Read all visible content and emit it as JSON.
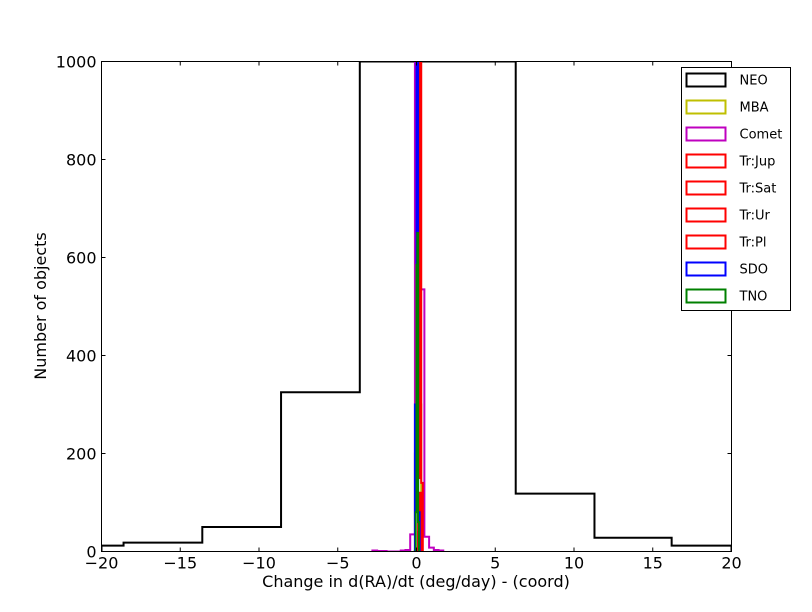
{
  "chart_data": {
    "type": "histogram",
    "xlabel": "Change in d(RA)/dt (deg/day) - (coord)",
    "ylabel": "Number of objects",
    "xlim": [
      -20,
      20
    ],
    "ylim": [
      0,
      1000
    ],
    "xticks": [
      -20,
      -15,
      -10,
      -5,
      0,
      5,
      10,
      15,
      20
    ],
    "xtick_labels": [
      "−20",
      "−15",
      "−10",
      "−5",
      "0",
      "5",
      "10",
      "15",
      "20"
    ],
    "yticks": [
      0,
      200,
      400,
      600,
      800,
      1000
    ],
    "ytick_labels": [
      "0",
      "200",
      "400",
      "600",
      "800",
      "1000"
    ],
    "grid": false,
    "legend_position": "upper-right",
    "series": [
      {
        "name": "NEO",
        "color": "#000000",
        "edges": [
          -20,
          -18.6,
          -13.6,
          -8.6,
          -3.6,
          1.4,
          6.3,
          11.3,
          16.2,
          20
        ],
        "counts": [
          12,
          18,
          50,
          325,
          1000,
          1000,
          118,
          28,
          12
        ]
      },
      {
        "name": "MBA",
        "color": "#bfbf00",
        "edges": [
          -0.2,
          -0.1,
          0.0,
          0.1,
          0.2,
          0.3,
          0.4
        ],
        "counts": [
          0,
          200,
          1000,
          1000,
          300,
          0
        ]
      },
      {
        "name": "Comet",
        "color": "#bf00bf",
        "edges": [
          -2.8,
          -2.5,
          -2.2,
          -1.9,
          -1.6,
          -1.3,
          -1.0,
          -0.7,
          -0.4,
          -0.1,
          0.2,
          0.5,
          0.8,
          1.1,
          1.4,
          1.7
        ],
        "counts": [
          2,
          1,
          1,
          0,
          0,
          0,
          2,
          3,
          35,
          1000,
          535,
          30,
          8,
          3,
          2
        ]
      },
      {
        "name": "Tr:Jup",
        "color": "#ff0000",
        "edges": [
          0.1,
          0.2,
          0.3,
          0.4
        ],
        "counts": [
          150,
          1000,
          140
        ]
      },
      {
        "name": "Tr:Sat",
        "color": "#ff0000",
        "edges": [
          0.2,
          0.3
        ],
        "counts": [
          5
        ]
      },
      {
        "name": "Tr:Ur",
        "color": "#ff0000",
        "edges": [
          0.2,
          0.3
        ],
        "counts": [
          3
        ]
      },
      {
        "name": "Tr:Pl",
        "color": "#ff0000",
        "edges": [
          0.1,
          0.2,
          0.3
        ],
        "counts": [
          40,
          120
        ]
      },
      {
        "name": "SDO",
        "color": "#0000ff",
        "edges": [
          -0.1,
          0.0,
          0.1,
          0.2
        ],
        "counts": [
          300,
          1000,
          80
        ]
      },
      {
        "name": "TNO",
        "color": "#008000",
        "edges": [
          -0.05,
          0.0,
          0.05,
          0.1,
          0.15
        ],
        "counts": [
          80,
          585,
          650,
          60
        ]
      }
    ]
  }
}
